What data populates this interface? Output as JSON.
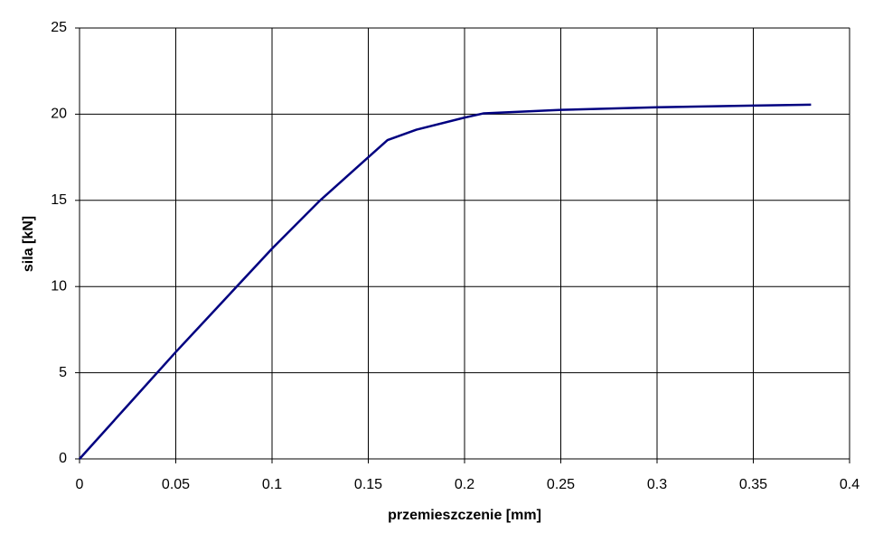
{
  "chart_data": {
    "type": "line",
    "x_label": "przemieszczenie [mm]",
    "y_label": "sila [kN]",
    "x": [
      0,
      0.025,
      0.05,
      0.075,
      0.1,
      0.125,
      0.15,
      0.16,
      0.175,
      0.2,
      0.21,
      0.25,
      0.3,
      0.35,
      0.38
    ],
    "series": [
      {
        "color": "#000080",
        "values": [
          0,
          3.1,
          6.2,
          9.2,
          12.2,
          15.0,
          17.5,
          18.5,
          19.1,
          19.8,
          20.05,
          20.25,
          20.4,
          20.5,
          20.55
        ]
      }
    ],
    "xlim": [
      0,
      0.4
    ],
    "xticks": [
      0,
      0.05,
      0.1,
      0.15,
      0.2,
      0.25,
      0.3,
      0.35,
      0.4
    ],
    "ylim": [
      0,
      25
    ],
    "yticks": [
      0,
      5,
      10,
      15,
      20,
      25
    ],
    "grid": true
  }
}
